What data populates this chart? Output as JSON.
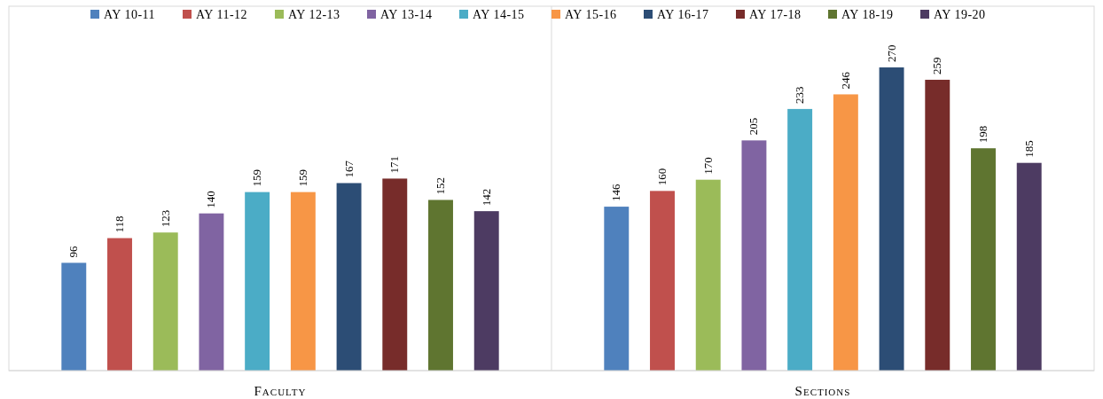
{
  "chart_data": {
    "type": "bar",
    "categories": [
      "Faculty",
      "Sections"
    ],
    "series": [
      {
        "name": "AY 10-11",
        "color": "#4f81bd",
        "values": [
          96,
          146
        ]
      },
      {
        "name": "AY 11-12",
        "color": "#c0504d",
        "values": [
          118,
          160
        ]
      },
      {
        "name": "AY 12-13",
        "color": "#9bbb59",
        "values": [
          123,
          170
        ]
      },
      {
        "name": "AY 13-14",
        "color": "#8064a2",
        "values": [
          140,
          205
        ]
      },
      {
        "name": "AY 14-15",
        "color": "#4bacc6",
        "values": [
          159,
          233
        ]
      },
      {
        "name": "AY 15-16",
        "color": "#f79646",
        "values": [
          159,
          246
        ]
      },
      {
        "name": "AY 16-17",
        "color": "#2c4d75",
        "values": [
          167,
          270
        ]
      },
      {
        "name": "AY 17-18",
        "color": "#772c2a",
        "values": [
          171,
          259
        ]
      },
      {
        "name": "AY 18-19",
        "color": "#5f7530",
        "values": [
          152,
          198
        ]
      },
      {
        "name": "AY 19-20",
        "color": "#4d3b62",
        "values": [
          142,
          185
        ]
      }
    ],
    "data_labels": true,
    "legend": "top",
    "grid": false
  }
}
